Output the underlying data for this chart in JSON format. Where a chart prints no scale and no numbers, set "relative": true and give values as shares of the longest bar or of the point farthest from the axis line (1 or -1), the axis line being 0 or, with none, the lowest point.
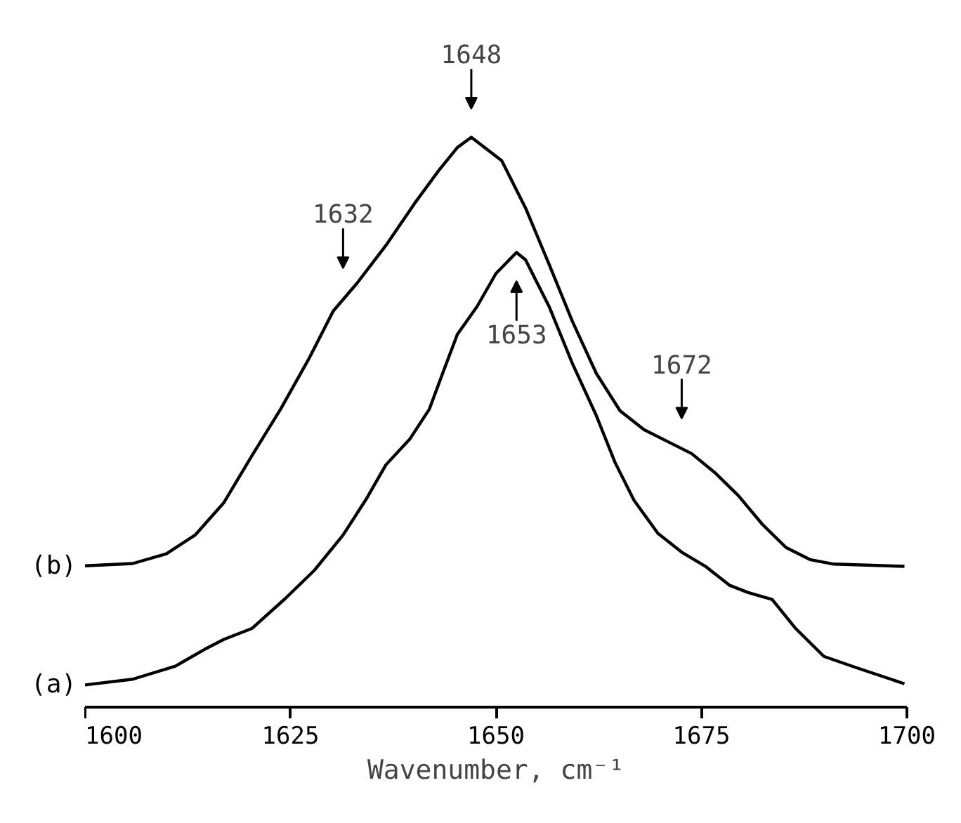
{
  "chart_data": {
    "type": "line",
    "relative": true,
    "xlabel": "Wavenumber, cm⁻¹",
    "xlim": [
      1600,
      1700
    ],
    "xticks": [
      1600,
      1625,
      1650,
      1675,
      1700
    ],
    "grid": false,
    "marker": "none",
    "line_style": "solid",
    "tick_labels": "x",
    "series": [
      {
        "name": "(b)",
        "color": "#000000",
        "x": [
          1600,
          1605.8,
          1609.9,
          1613.4,
          1616.9,
          1620.3,
          1623.8,
          1627.3,
          1630.2,
          1633.1,
          1636.6,
          1640.1,
          1643.0,
          1645.3,
          1647.0,
          1650.7,
          1653.6,
          1656.5,
          1659.3,
          1662.2,
          1665.1,
          1668.0,
          1670.9,
          1673.8,
          1676.6,
          1679.5,
          1682.4,
          1685.3,
          1688.2,
          1691.1,
          1699.7
        ],
        "values": [
          0.248,
          0.252,
          0.269,
          0.302,
          0.359,
          0.441,
          0.523,
          0.613,
          0.695,
          0.744,
          0.81,
          0.884,
          0.941,
          0.982,
          1.0,
          0.959,
          0.876,
          0.776,
          0.677,
          0.586,
          0.52,
          0.487,
          0.466,
          0.445,
          0.412,
          0.371,
          0.321,
          0.28,
          0.259,
          0.251,
          0.247
        ]
      },
      {
        "name": "(a)",
        "color": "#000000",
        "x": [
          1600,
          1605.8,
          1611.0,
          1614.5,
          1616.9,
          1620.3,
          1624.4,
          1627.9,
          1631.4,
          1634.3,
          1636.6,
          1639.5,
          1641.9,
          1643.6,
          1645.3,
          1647.7,
          1650.0,
          1652.5,
          1653.6,
          1656.5,
          1659.3,
          1662.2,
          1664.5,
          1666.8,
          1669.7,
          1672.6,
          1675.5,
          1678.4,
          1680.7,
          1683.6,
          1686.4,
          1689.9,
          1693.9,
          1699.7
        ],
        "values": [
          0.039,
          0.049,
          0.072,
          0.101,
          0.119,
          0.138,
          0.191,
          0.24,
          0.302,
          0.367,
          0.425,
          0.47,
          0.523,
          0.589,
          0.654,
          0.703,
          0.761,
          0.798,
          0.785,
          0.702,
          0.603,
          0.512,
          0.429,
          0.363,
          0.305,
          0.272,
          0.247,
          0.214,
          0.201,
          0.189,
          0.139,
          0.089,
          0.069,
          0.041
        ]
      }
    ],
    "annotations": [
      {
        "text": "1648",
        "x": 1647,
        "y": 1.0
      },
      {
        "text": "1632",
        "x": 1631.4,
        "y": 0.72
      },
      {
        "text": "1672",
        "x": 1672.6,
        "y": 0.456
      },
      {
        "text": "1653",
        "x": 1652.5,
        "y": 0.798
      }
    ]
  }
}
